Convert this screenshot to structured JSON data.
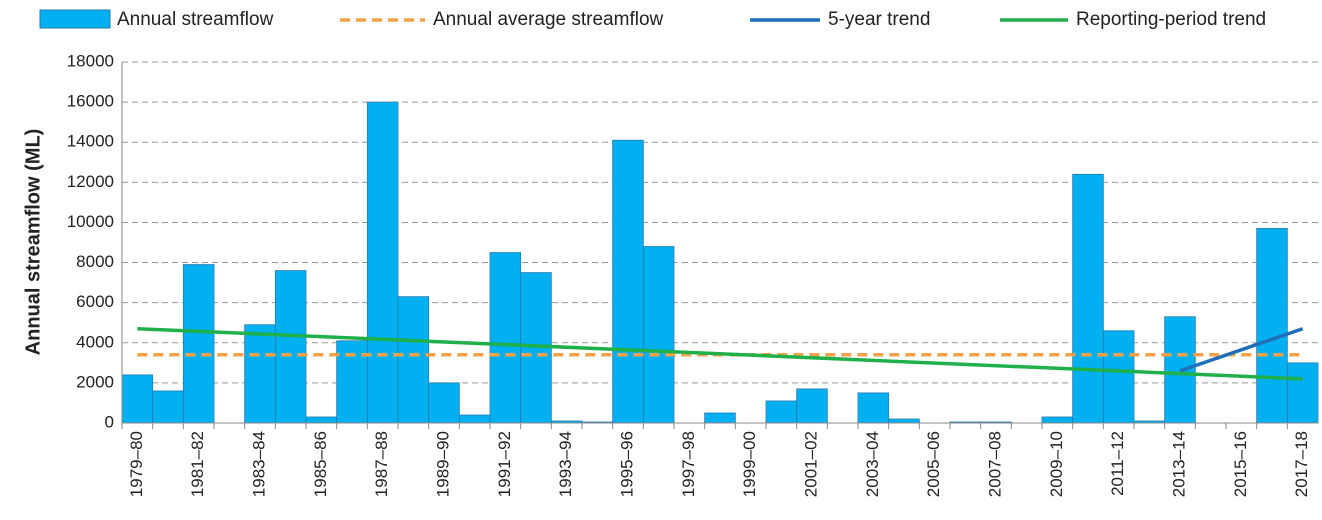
{
  "chart_data": {
    "type": "bar",
    "y_label": "Annual streamflow (ML)",
    "categories": [
      "1979–80",
      null,
      "1981–82",
      null,
      "1983–84",
      null,
      "1985–86",
      null,
      "1987–88",
      null,
      "1989–90",
      null,
      "1991–92",
      null,
      "1993–94",
      null,
      "1995–96",
      null,
      "1997–98",
      null,
      "1999–00",
      null,
      "2001–02",
      null,
      "2003–04",
      null,
      "2005–06",
      null,
      "2007–08",
      null,
      "2009–10",
      null,
      "2011–12",
      null,
      "2013–14",
      null,
      "2015–16",
      null,
      "2017–18"
    ],
    "bar_series": {
      "name": "Annual streamflow",
      "color": "#00b0f0",
      "values": [
        2400,
        1600,
        7900,
        0,
        4900,
        7600,
        300,
        4100,
        16000,
        6300,
        2000,
        400,
        8500,
        7500,
        100,
        50,
        14100,
        8800,
        0,
        500,
        0,
        1100,
        1700,
        0,
        1500,
        200,
        0,
        50,
        50,
        0,
        300,
        12400,
        4600,
        100,
        5300,
        0,
        0,
        9700,
        3000
      ]
    },
    "line_series": [
      {
        "name": "Annual average streamflow",
        "color": "#f4a14a",
        "dashed": true,
        "x": [
          "1979–80",
          "2017–18"
        ],
        "values": [
          3400,
          3400
        ]
      },
      {
        "name": "5-year trend",
        "color": "#1f6fb8",
        "x": [
          "2013–14",
          "2017–18"
        ],
        "values": [
          2600,
          4700
        ]
      },
      {
        "name": "Reporting-period trend",
        "color": "#1fb04a",
        "x": [
          "1979–80",
          "2017–18"
        ],
        "values": [
          4700,
          2200
        ]
      }
    ],
    "ylim": [
      0,
      18000
    ],
    "yticks": [
      0,
      2000,
      4000,
      6000,
      8000,
      10000,
      12000,
      14000,
      16000,
      18000
    ],
    "grid": true,
    "legend": "top"
  }
}
